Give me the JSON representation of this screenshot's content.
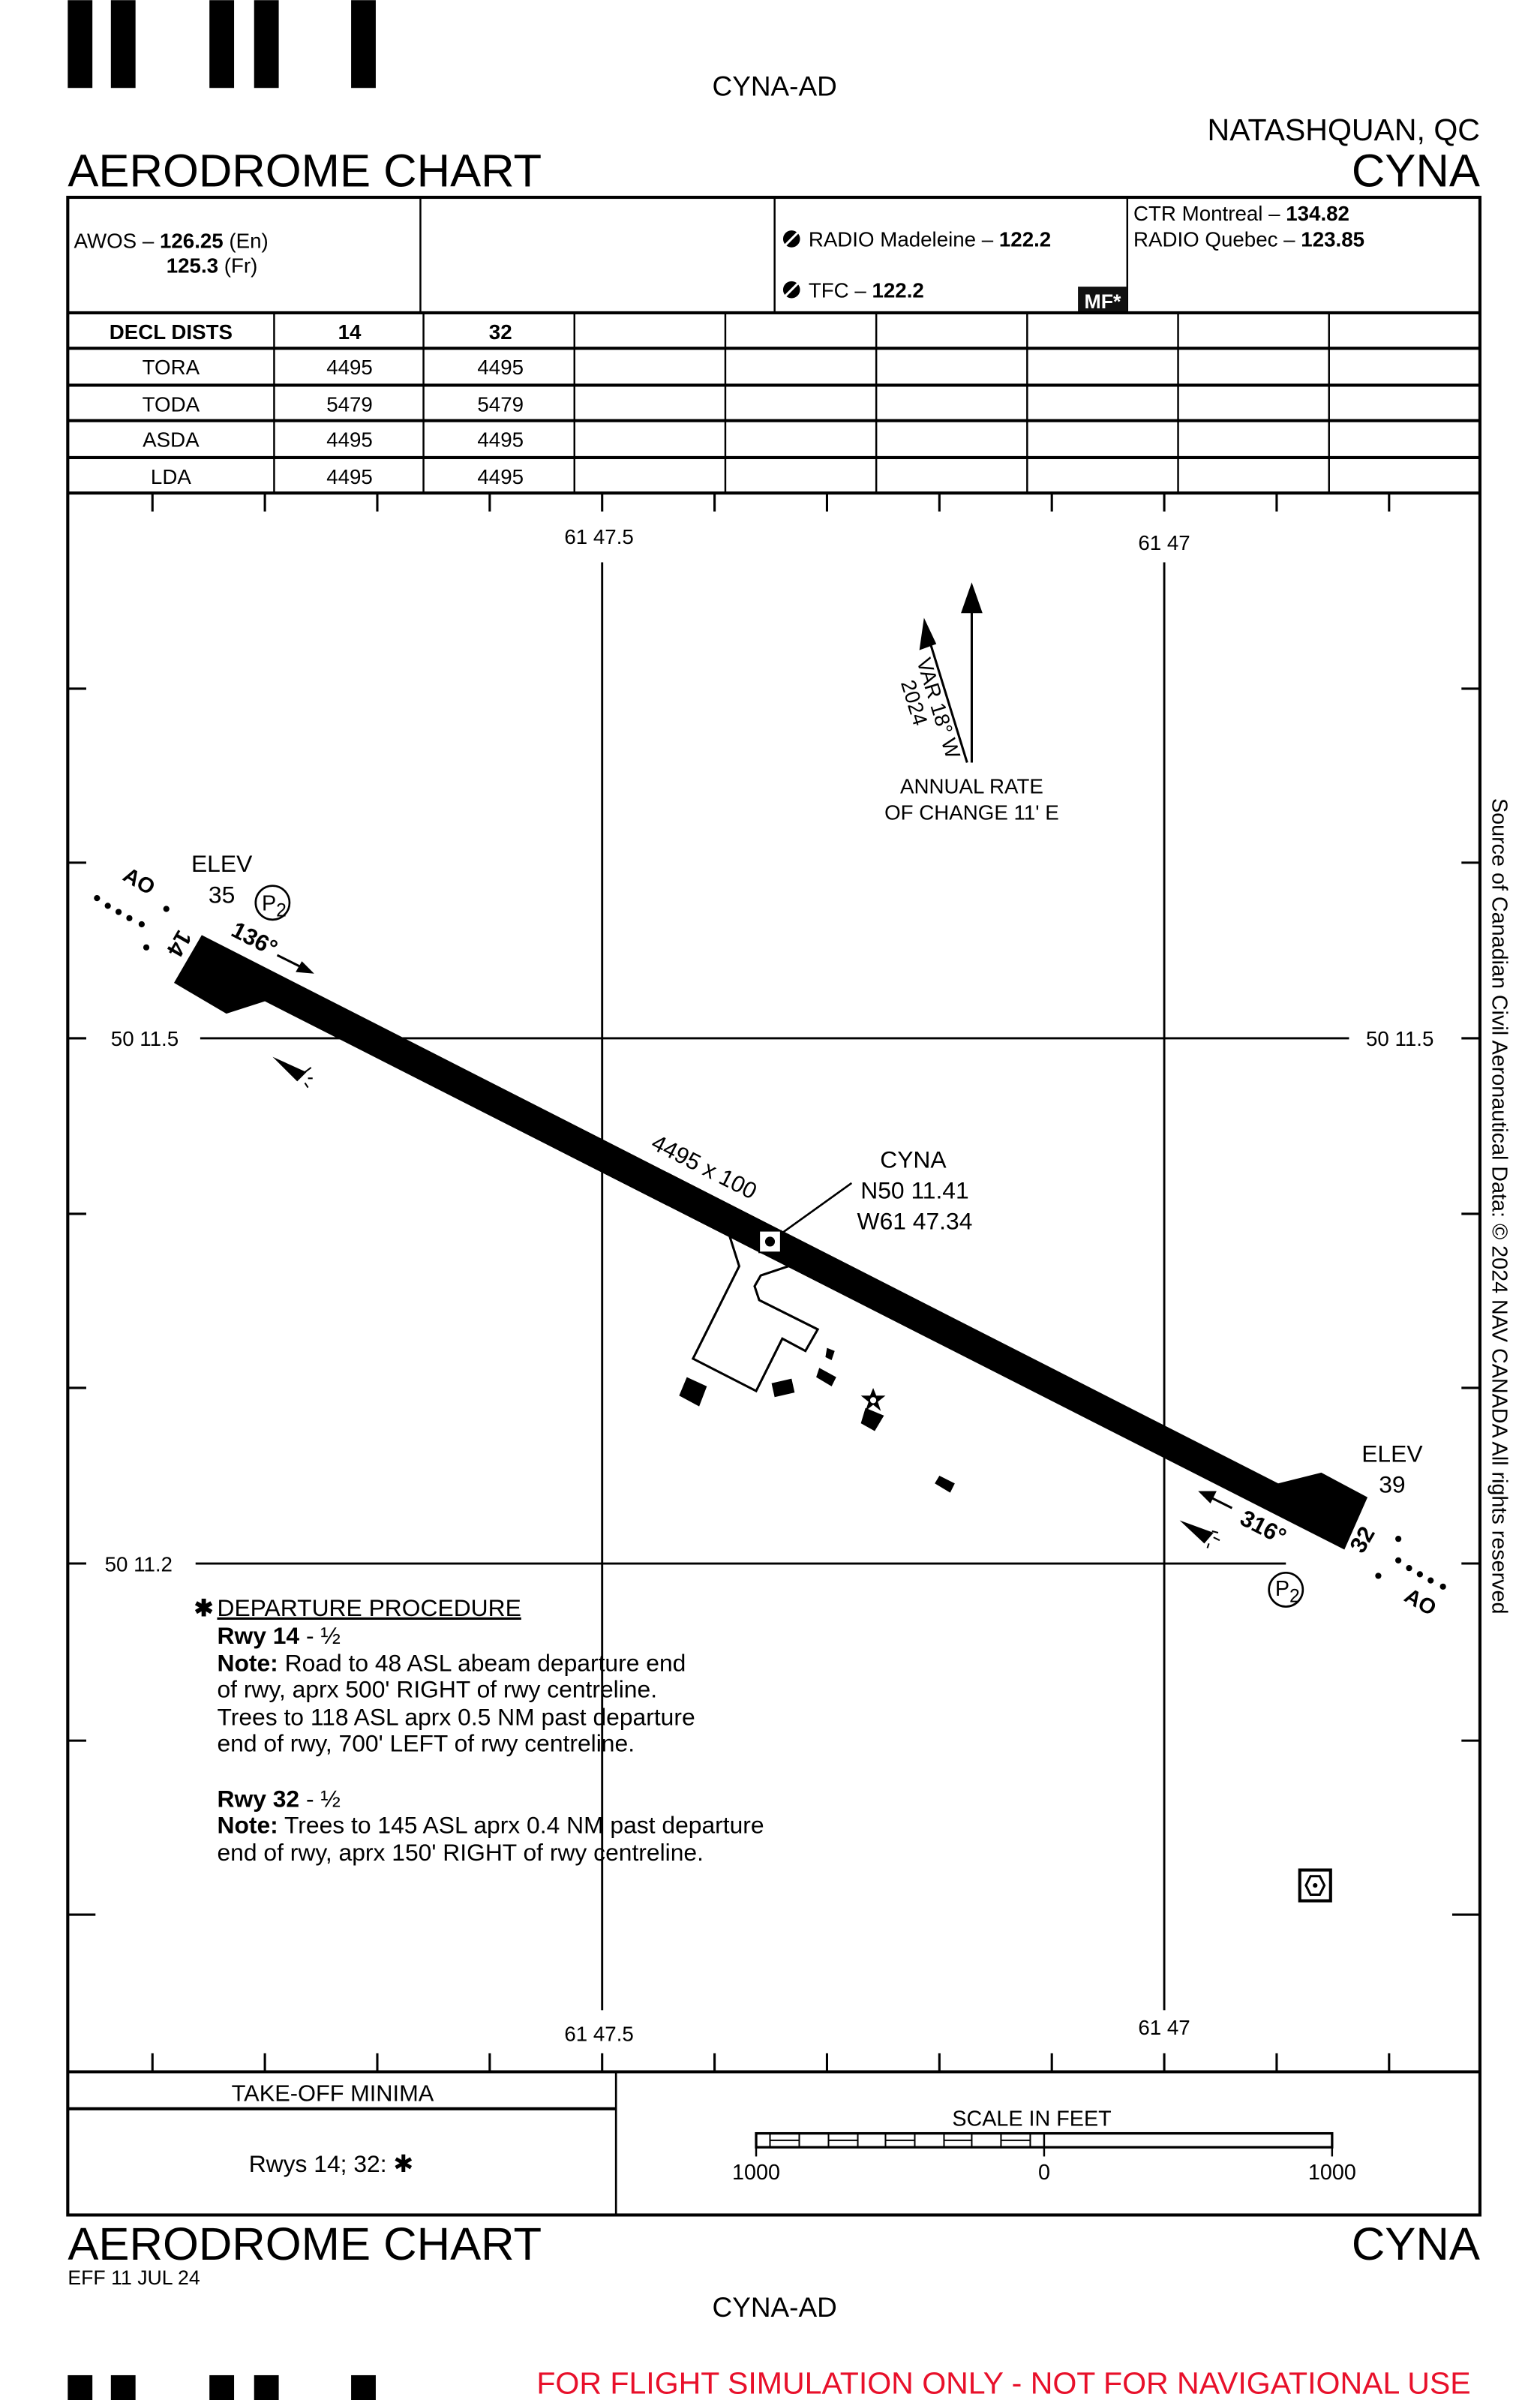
{
  "header": {
    "doc_id": "CYNA-AD",
    "location": "NATASHQUAN, QC",
    "chart_title": "AERODROME CHART",
    "ident": "CYNA"
  },
  "comms": {
    "awos_label": "AWOS –",
    "awos_en_freq": "126.25",
    "awos_en_lang": "(En)",
    "awos_fr_freq": "125.3",
    "awos_fr_lang": "(Fr)",
    "radio_label": "RADIO Madeleine –",
    "radio_freq": "122.2",
    "tfc_label": "TFC –",
    "tfc_freq": "122.2",
    "mf_badge": "MF*",
    "ctr_label": "CTR Montreal –",
    "ctr_freq": "134.82",
    "radio2_label": "RADIO Quebec –",
    "radio2_freq": "123.85"
  },
  "decl_dists": {
    "headers": [
      "DECL DISTS",
      "14",
      "32"
    ],
    "rows": [
      [
        "TORA",
        "4495",
        "4495"
      ],
      [
        "TODA",
        "5479",
        "5479"
      ],
      [
        "ASDA",
        "4495",
        "4495"
      ],
      [
        "LDA",
        "4495",
        "4495"
      ]
    ]
  },
  "map": {
    "lon_labels": [
      "61 47.5",
      "61 47"
    ],
    "lat_labels": [
      "50 11.5",
      "50 11.2"
    ],
    "magnetic_variation": "VAR 18° W",
    "variation_year": "2024",
    "annual_rate_1": "ANNUAL RATE",
    "annual_rate_2": "OF CHANGE 11' E",
    "rwy14": {
      "designator": "14",
      "heading": "136°",
      "elev_label": "ELEV",
      "elev": "35",
      "lighting": "AO",
      "papi": "P",
      "papi_sub": "2"
    },
    "rwy32": {
      "designator": "32",
      "heading": "316°",
      "elev_label": "ELEV",
      "elev": "39",
      "lighting": "AO",
      "papi": "P",
      "papi_sub": "2"
    },
    "runway_dims": "4495 x 100",
    "arp": {
      "ident": "CYNA",
      "lat": "N50 11.41",
      "lon": "W61 47.34"
    },
    "source_note": "Source of Canadian Civil Aeronautical Data: © 2024 NAV CANADA All rights reserved"
  },
  "departure": {
    "marker": "✱",
    "title": "DEPARTURE PROCEDURE",
    "rwy14_label": "Rwy 14",
    "rwy14_value": " - ½",
    "note_label": "Note:",
    "rwy14_lines": [
      " Road to 48 ASL abeam departure end",
      "of rwy, aprx 500' RIGHT of rwy centreline.",
      "Trees to 118 ASL aprx 0.5 NM past departure",
      "end of rwy, 700' LEFT of rwy centreline."
    ],
    "rwy32_label": "Rwy 32",
    "rwy32_value": " - ½",
    "rwy32_lines": [
      " Trees to 145 ASL aprx 0.4 NM past departure",
      "end of rwy, aprx 150' RIGHT of rwy centreline."
    ]
  },
  "takeoff_minima": {
    "title": "TAKE-OFF MINIMA",
    "value": "Rwys 14; 32: ✱"
  },
  "scale": {
    "title": "SCALE IN FEET",
    "labels": [
      "1000",
      "0",
      "1000"
    ]
  },
  "footer": {
    "chart_title": "AERODROME CHART",
    "ident": "CYNA",
    "effective": "EFF 11 JUL 24",
    "doc_id": "CYNA-AD",
    "disclaimer": "FOR FLIGHT SIMULATION ONLY - NOT FOR NAVIGATIONAL USE",
    "disclaimer_color": "#e8102a"
  }
}
